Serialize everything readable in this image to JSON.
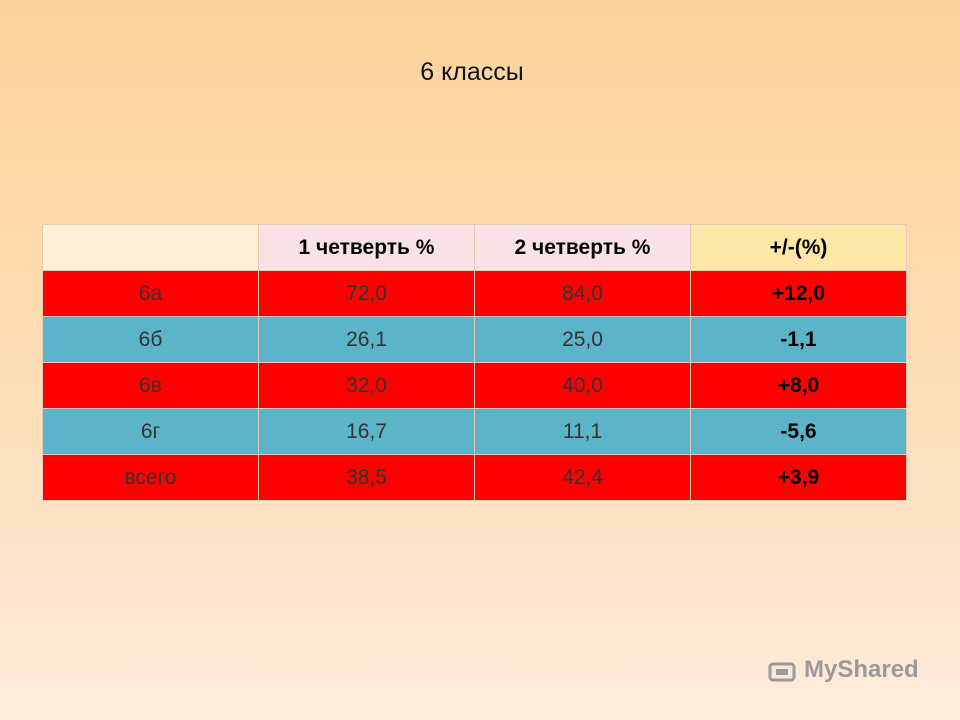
{
  "title": "6 классы",
  "table": {
    "header": [
      "1 четверть %",
      "2 четверть %",
      "+/-(%)"
    ],
    "rows": [
      [
        "6а",
        "72,0",
        "84,0",
        "+12,0"
      ],
      [
        "6б",
        "26,1",
        "25,0",
        "-1,1"
      ],
      [
        "6в",
        "32,0",
        "40,0",
        "+8,0"
      ],
      [
        "6г",
        "16,7",
        "11,1",
        "-5,6"
      ],
      [
        "всего",
        "38,5",
        "42,4",
        "+3,9"
      ]
    ]
  },
  "watermark": "MyShared"
}
